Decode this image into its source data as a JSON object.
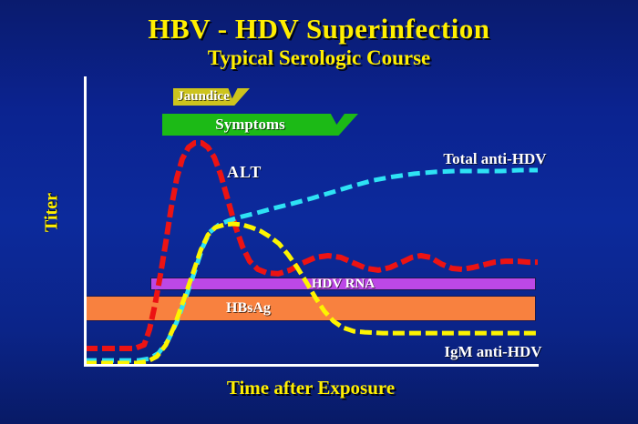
{
  "title": "HBV - HDV Superinfection",
  "subtitle": "Typical Serologic Course",
  "axes": {
    "y_label": "Titer",
    "x_label": "Time after Exposure"
  },
  "labels": {
    "alt": "ALT",
    "total_anti_hdv": "Total anti-HDV",
    "igm_anti_hdv": "IgM anti-HDV",
    "jaundice": "Jaundice",
    "symptoms": "Symptoms",
    "hdv_rna": "HDV RNA",
    "hbsag": "HBsAg"
  },
  "colors": {
    "title_text": "#ffef00",
    "axis": "#ffffff",
    "alt_curve": "#ec1313",
    "total_anti_hdv_curve": "#2ee2f4",
    "igm_anti_hdv_curve": "#fdf400",
    "jaundice_bar": "#cdc41d",
    "symptoms_bar": "#1cba16",
    "hdv_rna_bar": "#bc48e6",
    "hbsag_bar": "#f8813f",
    "background_mid": "#0c2a9c"
  },
  "chart_data": {
    "type": "line",
    "title": "HBV - HDV Superinfection",
    "subtitle": "Typical Serologic Course",
    "xlabel": "Time after Exposure",
    "ylabel": "Titer",
    "x_range": [
      0,
      100
    ],
    "y_range": [
      0,
      100
    ],
    "grid": false,
    "axis_ticks": "none shown (conceptual serologic diagram, relative units)",
    "legend_position": "labels placed next to curves",
    "series": [
      {
        "name": "ALT",
        "slug": "alt",
        "color": "#ec1313",
        "style": "dashed",
        "points": [
          [
            0,
            7.3
          ],
          [
            7,
            7.3
          ],
          [
            11,
            7.3
          ],
          [
            13.1,
            8.9
          ],
          [
            14.3,
            15.9
          ],
          [
            15.5,
            26.8
          ],
          [
            16.7,
            40.2
          ],
          [
            17.9,
            54.9
          ],
          [
            19.1,
            70.3
          ],
          [
            20.3,
            83.3
          ],
          [
            21.5,
            91.9
          ],
          [
            22.9,
            97.2
          ],
          [
            24.3,
            99.2
          ],
          [
            25.8,
            99.2
          ],
          [
            27.2,
            97.2
          ],
          [
            28.6,
            92.7
          ],
          [
            30,
            85
          ],
          [
            31.6,
            73.6
          ],
          [
            33.2,
            62.2
          ],
          [
            34.8,
            52.8
          ],
          [
            36.4,
            46.3
          ],
          [
            38.2,
            42.7
          ],
          [
            40.2,
            41.1
          ],
          [
            42.7,
            40.7
          ],
          [
            45.3,
            42.3
          ],
          [
            48.1,
            45.5
          ],
          [
            50.9,
            48
          ],
          [
            53.7,
            48.8
          ],
          [
            56.5,
            48
          ],
          [
            59.4,
            45.5
          ],
          [
            62.2,
            43.1
          ],
          [
            64.8,
            42.3
          ],
          [
            67.4,
            43.5
          ],
          [
            70,
            45.9
          ],
          [
            72.2,
            48
          ],
          [
            74.2,
            48.8
          ],
          [
            76.3,
            48
          ],
          [
            78.7,
            45.1
          ],
          [
            81.1,
            43.1
          ],
          [
            83.3,
            42.7
          ],
          [
            85.7,
            43.5
          ],
          [
            88.1,
            44.7
          ],
          [
            90.5,
            45.9
          ],
          [
            92.9,
            46.3
          ],
          [
            95.6,
            46.3
          ],
          [
            98,
            45.9
          ],
          [
            100,
            45.9
          ]
        ]
      },
      {
        "name": "Total anti-HDV",
        "slug": "total-anti-hdv",
        "color": "#2ee2f4",
        "style": "dashed",
        "points": [
          [
            0,
            2
          ],
          [
            5.4,
            2
          ],
          [
            11.9,
            2
          ],
          [
            14.3,
            2.8
          ],
          [
            16.3,
            5.3
          ],
          [
            18.3,
            10.6
          ],
          [
            20.3,
            19.1
          ],
          [
            22.3,
            30.1
          ],
          [
            24.3,
            41.9
          ],
          [
            26,
            52.4
          ],
          [
            27.6,
            59.3
          ],
          [
            29.6,
            62.6
          ],
          [
            32,
            64.6
          ],
          [
            34.8,
            66.3
          ],
          [
            38,
            67.9
          ],
          [
            41.6,
            69.9
          ],
          [
            45.7,
            72
          ],
          [
            50.1,
            74.4
          ],
          [
            54.7,
            77.2
          ],
          [
            59.4,
            80.1
          ],
          [
            63.8,
            82.5
          ],
          [
            68.2,
            84.1
          ],
          [
            72.8,
            85.4
          ],
          [
            77.5,
            86.2
          ],
          [
            81.9,
            86.6
          ],
          [
            86.9,
            86.6
          ],
          [
            91.9,
            86.6
          ],
          [
            96,
            87
          ],
          [
            100,
            87
          ]
        ]
      },
      {
        "name": "IgM anti-HDV",
        "slug": "igm-anti-hdv",
        "color": "#fdf400",
        "style": "dashed",
        "points": [
          [
            0,
            0.8
          ],
          [
            6.4,
            0.8
          ],
          [
            11.5,
            0.8
          ],
          [
            13.9,
            1.6
          ],
          [
            15.9,
            3.7
          ],
          [
            17.9,
            8.9
          ],
          [
            19.9,
            17.9
          ],
          [
            21.9,
            29.3
          ],
          [
            23.9,
            41.1
          ],
          [
            25.6,
            51.2
          ],
          [
            27.2,
            58.1
          ],
          [
            28.8,
            61.4
          ],
          [
            30.8,
            62.6
          ],
          [
            32.8,
            63
          ],
          [
            34.8,
            62.6
          ],
          [
            36.8,
            61.4
          ],
          [
            38.8,
            59.8
          ],
          [
            40.8,
            57.3
          ],
          [
            42.9,
            54.1
          ],
          [
            44.9,
            49.2
          ],
          [
            46.9,
            43.5
          ],
          [
            48.9,
            37
          ],
          [
            50.9,
            30.1
          ],
          [
            52.9,
            24
          ],
          [
            54.9,
            19.5
          ],
          [
            56.9,
            16.7
          ],
          [
            59.4,
            15
          ],
          [
            61.8,
            14.6
          ],
          [
            65.8,
            14.2
          ],
          [
            71.8,
            14.2
          ],
          [
            77.9,
            14.2
          ],
          [
            83.9,
            14.2
          ],
          [
            89.9,
            14.2
          ],
          [
            96,
            14.2
          ],
          [
            100,
            14.2
          ]
        ]
      }
    ],
    "phase_bars": [
      {
        "name": "Jaundice",
        "color": "#cdc41d",
        "x_start": 19.5,
        "x_end": 36.2,
        "position": "above plot, upper row"
      },
      {
        "name": "Symptoms",
        "color": "#1cba16",
        "x_start": 17.1,
        "x_end": 60.4,
        "position": "above plot, second row"
      },
      {
        "name": "HDV RNA",
        "color": "#bc48e6",
        "x_start": 14.5,
        "x_end": 99.6,
        "position": "overlay inside plot, titer ~39"
      },
      {
        "name": "HBsAg",
        "color": "#f8813f",
        "x_start": 0,
        "x_end": 99.6,
        "position": "overlay inside plot, titer ~27"
      }
    ]
  }
}
